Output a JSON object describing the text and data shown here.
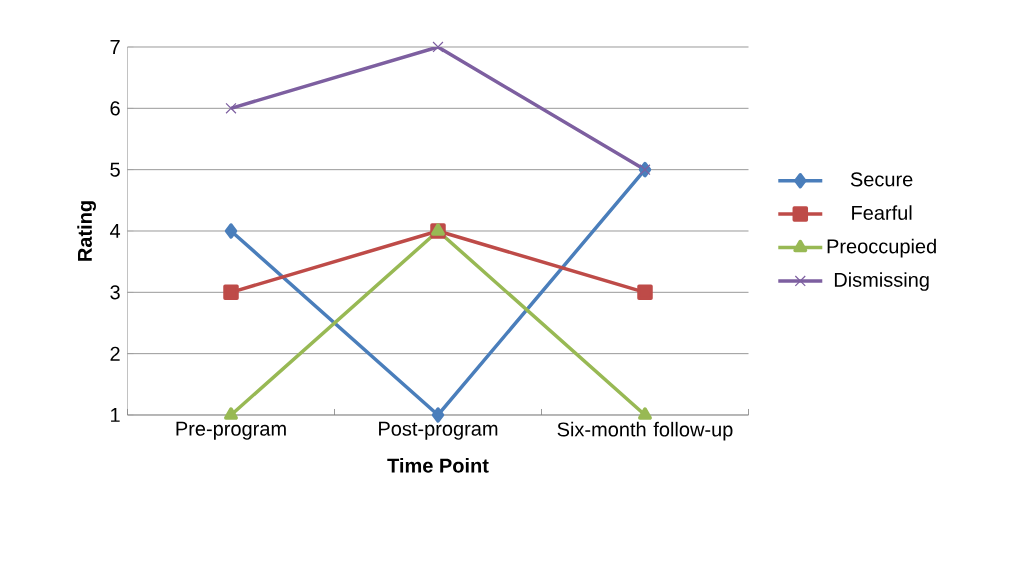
{
  "chart_data": {
    "type": "line",
    "xlabel": "Time Point",
    "ylabel": "Rating",
    "categories": [
      "Pre-program",
      "Post-program",
      "Six-month follow-up"
    ],
    "series": [
      {
        "name": "Secure",
        "color": "#4a7ebb",
        "values": [
          4,
          1,
          5
        ],
        "marker": "diamond"
      },
      {
        "name": "Fearful",
        "color": "#be4b48",
        "values": [
          3,
          4,
          3
        ],
        "marker": "square"
      },
      {
        "name": "Preoccupied",
        "color": "#98b954",
        "values": [
          1,
          4,
          1
        ],
        "marker": "triangle"
      },
      {
        "name": "Dismissing",
        "color": "#7d5fa0",
        "values": [
          6,
          7,
          5
        ],
        "marker": "cross"
      }
    ],
    "ylim": [
      1,
      7
    ],
    "yticks": [
      1,
      2,
      3,
      4,
      5,
      6,
      7
    ],
    "grid": "y",
    "legend": "right"
  }
}
